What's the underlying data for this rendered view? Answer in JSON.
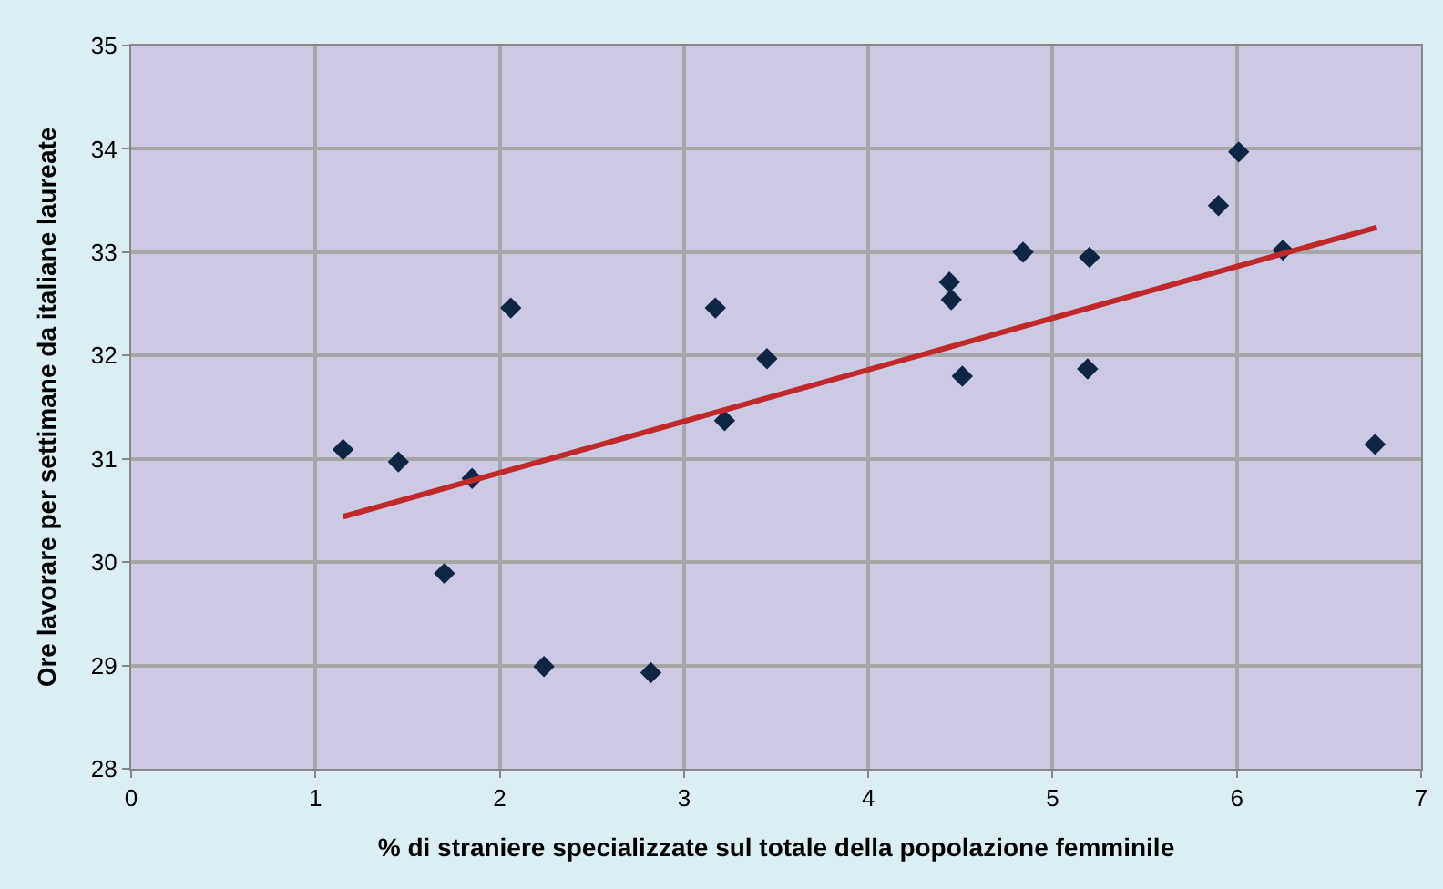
{
  "chart_data": {
    "type": "scatter",
    "xlabel": "% di straniere specializzate sul totale della popolazione femminile",
    "ylabel": "Ore lavorare per settimane da italiane laureate",
    "xlim": [
      0,
      7
    ],
    "xticks": [
      0,
      1,
      2,
      3,
      4,
      5,
      6,
      7
    ],
    "ylim": [
      28,
      35
    ],
    "yticks": [
      28,
      29,
      30,
      31,
      32,
      33,
      34,
      35
    ],
    "grid": true,
    "series": [
      {
        "color": "#0f2545",
        "marker": "diamond",
        "x": [
          1.15,
          1.45,
          1.7,
          1.85,
          2.06,
          2.24,
          2.82,
          3.17,
          3.22,
          3.45,
          4.44,
          4.45,
          4.51,
          4.84,
          5.19,
          5.2,
          5.9,
          6.01,
          6.25,
          6.75
        ],
        "values": [
          31.09,
          30.97,
          29.89,
          30.81,
          32.46,
          28.99,
          28.93,
          32.46,
          31.37,
          31.97,
          32.71,
          32.54,
          31.8,
          33.0,
          31.87,
          32.95,
          33.45,
          33.97,
          33.02,
          31.14
        ]
      },
      {
        "type": "line",
        "color": "#c0282a",
        "marker": "none",
        "line_style": "solid",
        "x": [
          1.15,
          6.76
        ],
        "values": [
          30.44,
          33.24
        ]
      }
    ]
  }
}
